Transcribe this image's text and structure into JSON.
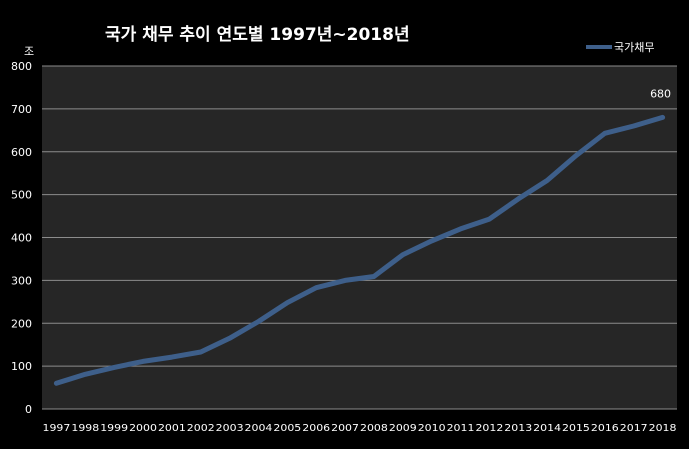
{
  "chart_data": {
    "type": "line",
    "title": "국가 채무 추이 연도별 1997년~2018년",
    "ylabel": "조",
    "xlabel": "",
    "ylim": [
      0,
      800
    ],
    "yticks": [
      0,
      100,
      200,
      300,
      400,
      500,
      600,
      700,
      800
    ],
    "grid": true,
    "legend_position": "top-right",
    "categories": [
      "1997",
      "1998",
      "1999",
      "2000",
      "2001",
      "2002",
      "2003",
      "2004",
      "2005",
      "2006",
      "2007",
      "2008",
      "2009",
      "2010",
      "2011",
      "2012",
      "2013",
      "2014",
      "2015",
      "2016",
      "2017",
      "2018"
    ],
    "series": [
      {
        "name": "국가채무",
        "color": "#3e5f8a",
        "values": [
          60,
          81,
          97,
          111,
          121,
          133,
          165,
          204,
          248,
          283,
          300,
          309,
          360,
          392,
          420,
          443,
          490,
          533,
          591,
          643,
          660,
          680
        ]
      }
    ],
    "data_labels": [
      {
        "series": 0,
        "index": 21,
        "text": "680"
      }
    ],
    "colors": {
      "background": "#000000",
      "plot_background": "#262626",
      "gridline": "#8c8c8c",
      "text": "#ffffff",
      "line": "#3e5f8a"
    }
  }
}
